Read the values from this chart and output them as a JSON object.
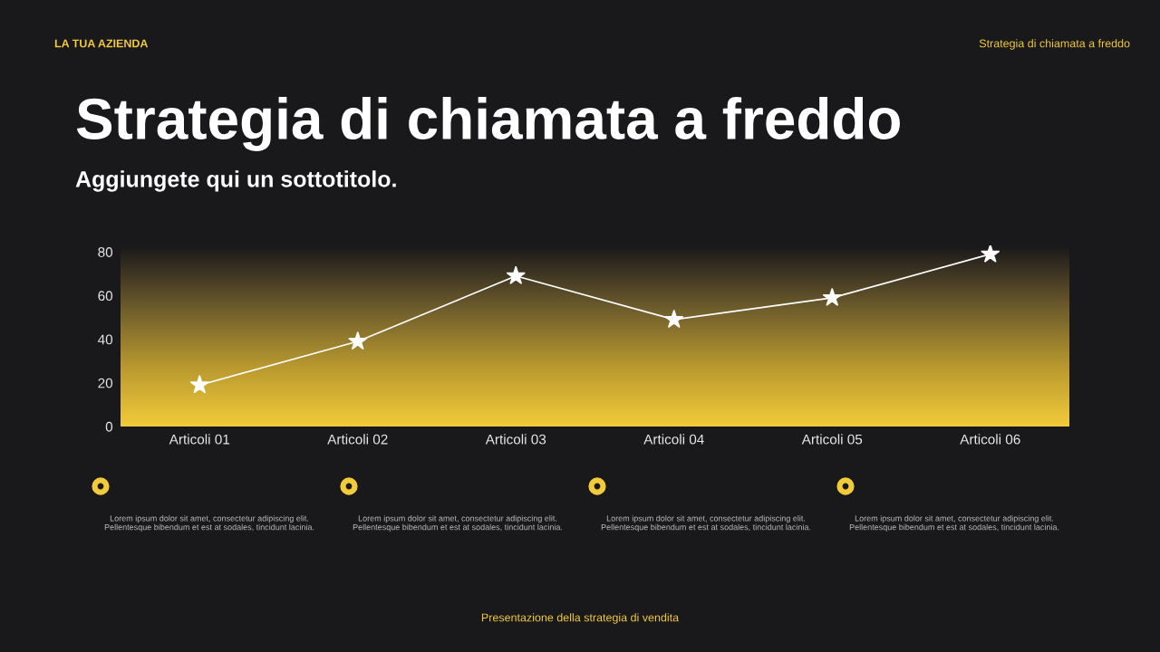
{
  "chart_data": {
    "type": "line",
    "title": "Strategia di chiamata a freddo",
    "subtitle": "Aggiungete qui un sottotitolo.",
    "categories": [
      "Articoli 01",
      "Articoli 02",
      "Articoli 03",
      "Articoli 04",
      "Articoli 05",
      "Articoli 06"
    ],
    "series": [
      {
        "color": "#ffffff",
        "values": [
          19,
          39,
          69,
          49,
          59,
          79
        ]
      }
    ],
    "marker": "star",
    "line_style": "solid",
    "grid": false,
    "ylim": [
      0,
      83
    ],
    "yticks": [
      0,
      20,
      40,
      60,
      80
    ],
    "annotations": [
      "LA TUA AZIENDA",
      "Strategia di chiamata a freddo",
      "Lorem ipsum dolor sit amet, consectetur adipiscing elit. Pellentesque bibendum et est at sodales, tincidunt lacinia.",
      "Lorem ipsum dolor sit amet, consectetur adipiscing elit. Pellentesque bibendum et est at sodales, tincidunt lacinia.",
      "Lorem ipsum dolor sit amet, consectetur adipiscing elit. Pellentesque bibendum et est at sodales, tincidunt lacinia.",
      "Lorem ipsum dolor sit amet, consectetur adipiscing elit. Pellentesque bibendum et est at sodales, tincidunt lacinia.",
      "Presentazione della strategia di vendita"
    ]
  }
}
